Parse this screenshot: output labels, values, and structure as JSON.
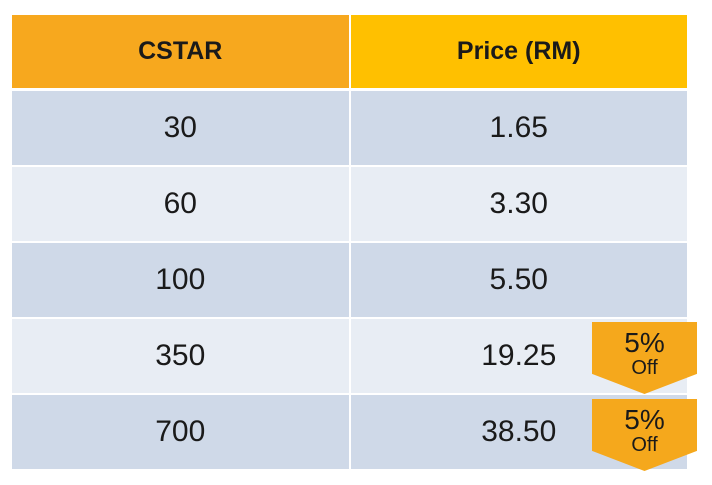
{
  "table": {
    "headers": {
      "cstar": "CSTAR",
      "price": "Price (RM)"
    },
    "rows": [
      {
        "cstar": "30",
        "price": "1.65"
      },
      {
        "cstar": "60",
        "price": "3.30"
      },
      {
        "cstar": "100",
        "price": "5.50"
      },
      {
        "cstar": "350",
        "price": "19.25"
      },
      {
        "cstar": "700",
        "price": "38.50"
      }
    ]
  },
  "badges": [
    {
      "percent": "5%",
      "label": "Off"
    },
    {
      "percent": "5%",
      "label": "Off"
    }
  ],
  "colors": {
    "header_left": "#f7a81e",
    "header_right": "#ffc000",
    "row_dark": "#cfd9e8",
    "row_light": "#e8edf4",
    "badge": "#f5a81c"
  }
}
